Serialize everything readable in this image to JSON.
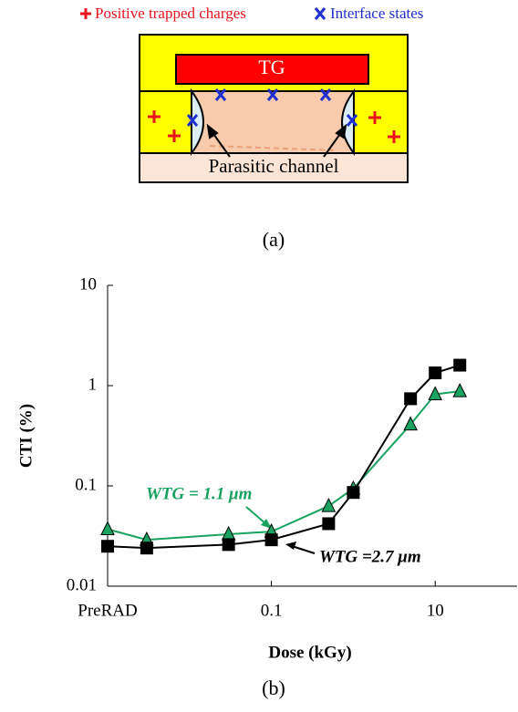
{
  "diagram": {
    "legend": [
      {
        "text": "Positive trapped charges",
        "color": "#e8141e"
      },
      {
        "text": "Interface states",
        "color": "#1f2fd0"
      }
    ],
    "gate_label": "TG",
    "channel_label": "Parasitic channel",
    "caption": "(a)"
  },
  "chart_caption": "(b)",
  "chart_data": {
    "type": "line",
    "xlabel": "Dose (kGy)",
    "ylabel": "CTI (%)",
    "x": [
      0.001,
      0.003,
      0.03,
      0.1,
      0.5,
      1,
      5,
      10,
      20
    ],
    "series": [
      {
        "name": "WTG = 1.1 μm",
        "color": "#1aa260",
        "marker": "triangle",
        "values": [
          0.037,
          0.029,
          0.033,
          0.035,
          0.063,
          0.094,
          0.41,
          0.82,
          0.88
        ]
      },
      {
        "name": "WTG =2.7 μm",
        "color": "#000000",
        "marker": "square",
        "values": [
          0.025,
          0.024,
          0.026,
          0.029,
          0.042,
          0.086,
          0.74,
          1.34,
          1.6
        ]
      }
    ],
    "xscale": "log",
    "yscale": "log",
    "xlim": [
      0.001,
      100
    ],
    "ylim": [
      0.01,
      10
    ],
    "xticks": [
      {
        "value": 0.001,
        "label": "PreRAD"
      },
      0.1,
      10
    ],
    "yticks": [
      0.01,
      0.1,
      1,
      10
    ]
  }
}
